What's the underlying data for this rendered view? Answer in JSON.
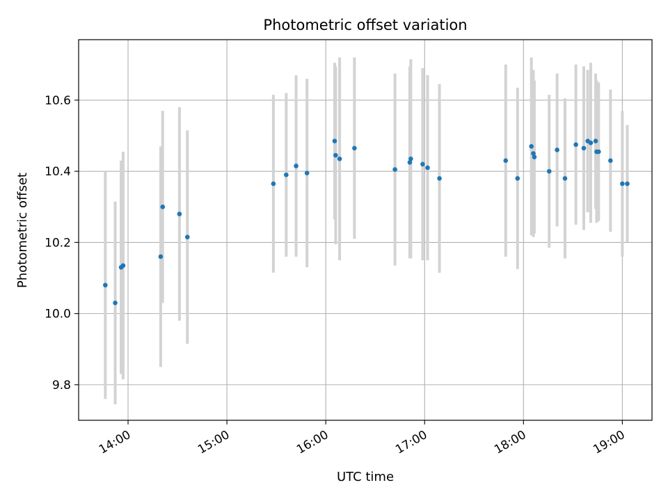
{
  "chart_data": {
    "type": "scatter",
    "title": "Photometric offset variation",
    "xlabel": "UTC time",
    "ylabel": "Photometric offset",
    "x_unit": "hour (UTC)",
    "xlim": [
      13.5,
      19.3
    ],
    "ylim": [
      9.7,
      10.77
    ],
    "grid": true,
    "x_ticks": [
      {
        "value": 14,
        "label": "14:00"
      },
      {
        "value": 15,
        "label": "15:00"
      },
      {
        "value": 16,
        "label": "16:00"
      },
      {
        "value": 17,
        "label": "17:00"
      },
      {
        "value": 18,
        "label": "18:00"
      },
      {
        "value": 19,
        "label": "19:00"
      }
    ],
    "y_ticks": [
      {
        "value": 9.8,
        "label": "9.8"
      },
      {
        "value": 10.0,
        "label": "10.0"
      },
      {
        "value": 10.2,
        "label": "10.2"
      },
      {
        "value": 10.4,
        "label": "10.4"
      },
      {
        "value": 10.6,
        "label": "10.6"
      }
    ],
    "colors": {
      "point": "#1f77b4",
      "errorbar": "#d3d3d3",
      "grid": "#b0b0b0"
    },
    "series": [
      {
        "points": [
          {
            "x": 13.77,
            "y": 10.08,
            "err": 0.32
          },
          {
            "x": 13.87,
            "y": 10.03,
            "err": 0.285
          },
          {
            "x": 13.93,
            "y": 10.13,
            "err": 0.3
          },
          {
            "x": 13.95,
            "y": 10.135,
            "err": 0.32
          },
          {
            "x": 14.33,
            "y": 10.16,
            "err": 0.31
          },
          {
            "x": 14.35,
            "y": 10.3,
            "err": 0.27
          },
          {
            "x": 14.52,
            "y": 10.28,
            "err": 0.3
          },
          {
            "x": 14.6,
            "y": 10.215,
            "err": 0.3
          },
          {
            "x": 15.47,
            "y": 10.365,
            "err": 0.25
          },
          {
            "x": 15.6,
            "y": 10.39,
            "err": 0.23
          },
          {
            "x": 15.7,
            "y": 10.415,
            "err": 0.255
          },
          {
            "x": 15.81,
            "y": 10.395,
            "err": 0.265
          },
          {
            "x": 16.09,
            "y": 10.485,
            "err": 0.22
          },
          {
            "x": 16.1,
            "y": 10.445,
            "err": 0.25
          },
          {
            "x": 16.14,
            "y": 10.435,
            "err": 0.285
          },
          {
            "x": 16.29,
            "y": 10.465,
            "err": 0.255
          },
          {
            "x": 16.7,
            "y": 10.405,
            "err": 0.27
          },
          {
            "x": 16.85,
            "y": 10.425,
            "err": 0.27
          },
          {
            "x": 16.86,
            "y": 10.435,
            "err": 0.28
          },
          {
            "x": 16.98,
            "y": 10.42,
            "err": 0.27
          },
          {
            "x": 17.03,
            "y": 10.41,
            "err": 0.26
          },
          {
            "x": 17.15,
            "y": 10.38,
            "err": 0.265
          },
          {
            "x": 17.82,
            "y": 10.43,
            "err": 0.27
          },
          {
            "x": 17.94,
            "y": 10.38,
            "err": 0.255
          },
          {
            "x": 18.08,
            "y": 10.47,
            "err": 0.25
          },
          {
            "x": 18.1,
            "y": 10.45,
            "err": 0.235
          },
          {
            "x": 18.11,
            "y": 10.44,
            "err": 0.215
          },
          {
            "x": 18.26,
            "y": 10.4,
            "err": 0.215
          },
          {
            "x": 18.34,
            "y": 10.46,
            "err": 0.215
          },
          {
            "x": 18.42,
            "y": 10.38,
            "err": 0.225
          },
          {
            "x": 18.53,
            "y": 10.475,
            "err": 0.225
          },
          {
            "x": 18.61,
            "y": 10.465,
            "err": 0.23
          },
          {
            "x": 18.65,
            "y": 10.485,
            "err": 0.2
          },
          {
            "x": 18.68,
            "y": 10.48,
            "err": 0.225
          },
          {
            "x": 18.73,
            "y": 10.485,
            "err": 0.19
          },
          {
            "x": 18.74,
            "y": 10.455,
            "err": 0.2
          },
          {
            "x": 18.76,
            "y": 10.455,
            "err": 0.195
          },
          {
            "x": 18.88,
            "y": 10.43,
            "err": 0.2
          },
          {
            "x": 19.0,
            "y": 10.365,
            "err": 0.205
          },
          {
            "x": 19.05,
            "y": 10.365,
            "err": 0.165
          }
        ]
      }
    ]
  }
}
